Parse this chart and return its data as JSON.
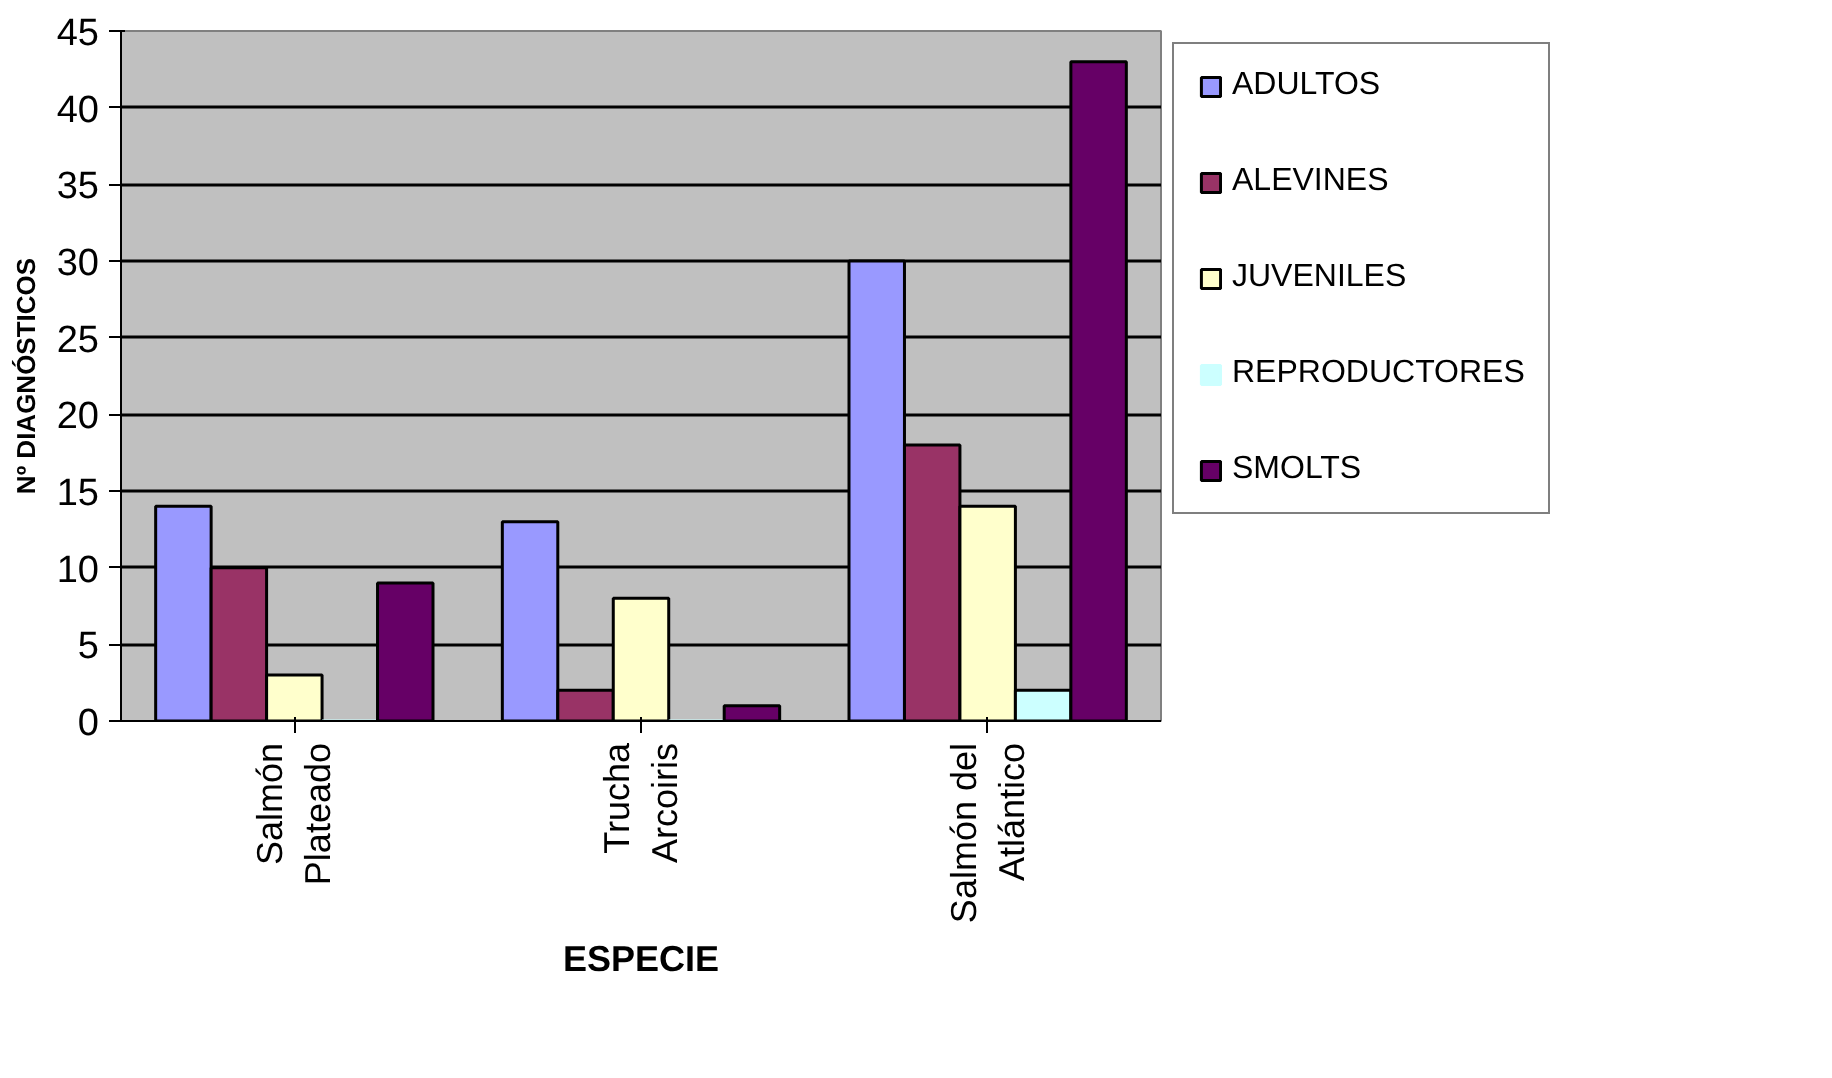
{
  "chart_data": {
    "type": "bar",
    "xlabel": "ESPECIE",
    "ylabel": "Nº DIAGNÓSTICOS",
    "categories": [
      "Salmón Plateado",
      "Trucha Arcoiris",
      "Salmón del Atlántico"
    ],
    "series": [
      {
        "name": "ADULTOS",
        "color": "#9999ff",
        "values": [
          14,
          13,
          30
        ]
      },
      {
        "name": "ALEVINES",
        "color": "#993366",
        "values": [
          10,
          2,
          18
        ]
      },
      {
        "name": "JUVENILES",
        "color": "#ffffcc",
        "values": [
          3,
          8,
          14
        ]
      },
      {
        "name": "REPRODUCTORES",
        "color": "#ccffff",
        "values": [
          0,
          0,
          2
        ]
      },
      {
        "name": "SMOLTS",
        "color": "#660066",
        "values": [
          9,
          1,
          43
        ]
      }
    ],
    "ylim": [
      0,
      45
    ],
    "yticks": [
      0,
      5,
      10,
      15,
      20,
      25,
      30,
      35,
      40,
      45
    ],
    "grid": "y",
    "legend": "right"
  }
}
